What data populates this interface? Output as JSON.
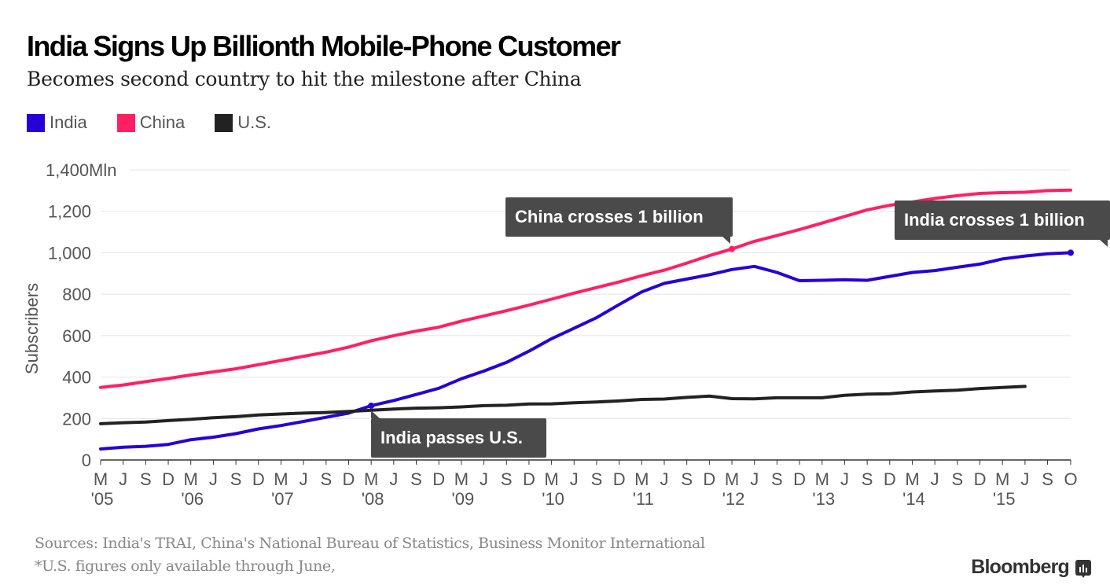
{
  "header": {
    "title": "India Signs Up Billionth Mobile-Phone Customer",
    "subtitle": "Becomes second country to hit the milestone after China"
  },
  "legend": [
    {
      "label": "India",
      "color": "#2800d7"
    },
    {
      "label": "China",
      "color": "#ff2064"
    },
    {
      "label": "U.S.",
      "color": "#222222"
    }
  ],
  "footer": {
    "sources": "Sources: India's TRAI, China's National Bureau of Statistics, Business Monitor International",
    "note": "*U.S. figures only available through June,",
    "brand": "Bloomberg"
  },
  "chart_data": {
    "type": "line",
    "title": "India Signs Up Billionth Mobile-Phone Customer",
    "subtitle": "Becomes second country to hit the milestone after China",
    "xlabel": "",
    "ylabel": "Subscribers",
    "y_unit": "Mln",
    "ylim": [
      0,
      1400
    ],
    "yticks": [
      0,
      200,
      400,
      600,
      800,
      1000,
      1200,
      1400
    ],
    "ytick_labels": [
      "0",
      "200",
      "400",
      "600",
      "800",
      "1,000",
      "1,200",
      "1,400Mln"
    ],
    "grid": true,
    "legend_position": "top-left",
    "x": [
      "Mar 2005",
      "Jun 2005",
      "Sep 2005",
      "Dec 2005",
      "Mar 2006",
      "Jun 2006",
      "Sep 2006",
      "Dec 2006",
      "Mar 2007",
      "Jun 2007",
      "Sep 2007",
      "Dec 2007",
      "Mar 2008",
      "Jun 2008",
      "Sep 2008",
      "Dec 2008",
      "Mar 2009",
      "Jun 2009",
      "Sep 2009",
      "Dec 2009",
      "Mar 2010",
      "Jun 2010",
      "Sep 2010",
      "Dec 2010",
      "Mar 2011",
      "Jun 2011",
      "Sep 2011",
      "Dec 2011",
      "Mar 2012",
      "Jun 2012",
      "Sep 2012",
      "Dec 2012",
      "Mar 2013",
      "Jun 2013",
      "Sep 2013",
      "Dec 2013",
      "Mar 2014",
      "Jun 2014",
      "Sep 2014",
      "Dec 2014",
      "Mar 2015",
      "Jun 2015",
      "Sep 2015",
      "Oct 2015"
    ],
    "xtick_labels": [
      "M",
      "J",
      "S",
      "D",
      "M",
      "J",
      "S",
      "D",
      "M",
      "J",
      "S",
      "D",
      "M",
      "J",
      "S",
      "D",
      "M",
      "J",
      "S",
      "D",
      "M",
      "J",
      "S",
      "D",
      "M",
      "J",
      "S",
      "D",
      "M",
      "J",
      "S",
      "D",
      "M",
      "J",
      "S",
      "D",
      "M",
      "J",
      "S",
      "D",
      "M",
      "J",
      "S",
      "O"
    ],
    "year_labels": [
      {
        "label": "'05",
        "at": 0
      },
      {
        "label": "'06",
        "at": 4
      },
      {
        "label": "'07",
        "at": 8
      },
      {
        "label": "'08",
        "at": 12
      },
      {
        "label": "'09",
        "at": 16
      },
      {
        "label": "'10",
        "at": 20
      },
      {
        "label": "'11",
        "at": 24
      },
      {
        "label": "'12",
        "at": 28
      },
      {
        "label": "'13",
        "at": 32
      },
      {
        "label": "'14",
        "at": 36
      },
      {
        "label": "'15",
        "at": 40
      }
    ],
    "series": [
      {
        "name": "India",
        "color": "#2800d7",
        "values": [
          53,
          62,
          66,
          75,
          98,
          110,
          127,
          150,
          166,
          186,
          206,
          226,
          262,
          287,
          316,
          346,
          392,
          429,
          471,
          525,
          585,
          636,
          687,
          750,
          811,
          852,
          873,
          894,
          919,
          934,
          905,
          865,
          867,
          870,
          867,
          886,
          905,
          914,
          930,
          945,
          970,
          984,
          995,
          1000
        ]
      },
      {
        "name": "China",
        "color": "#ff2064",
        "values": [
          350,
          362,
          378,
          393,
          410,
          425,
          440,
          460,
          480,
          500,
          520,
          545,
          575,
          600,
          622,
          641,
          670,
          695,
          720,
          747,
          776,
          805,
          832,
          859,
          889,
          916,
          950,
          986,
          1018,
          1055,
          1083,
          1112,
          1143,
          1175,
          1207,
          1229,
          1245,
          1262,
          1275,
          1286,
          1290,
          1292,
          1300,
          1302
        ]
      },
      {
        "name": "U.S.",
        "color": "#222222",
        "values": [
          175,
          180,
          183,
          190,
          196,
          204,
          209,
          217,
          222,
          226,
          229,
          234,
          240,
          246,
          250,
          252,
          256,
          262,
          264,
          270,
          271,
          276,
          280,
          285,
          292,
          294,
          302,
          308,
          296,
          295,
          300,
          300,
          300,
          312,
          318,
          320,
          328,
          333,
          337,
          345,
          350,
          355,
          null,
          null
        ]
      }
    ],
    "annotations": [
      {
        "text": "China crosses 1 billion",
        "series": "China",
        "at": 28,
        "value": 1018
      },
      {
        "text": "India crosses 1 billion",
        "series": "India",
        "at": 43,
        "value": 1000
      },
      {
        "text": "India passes U.S.",
        "series": "India",
        "at": 12,
        "value": 262
      }
    ]
  }
}
